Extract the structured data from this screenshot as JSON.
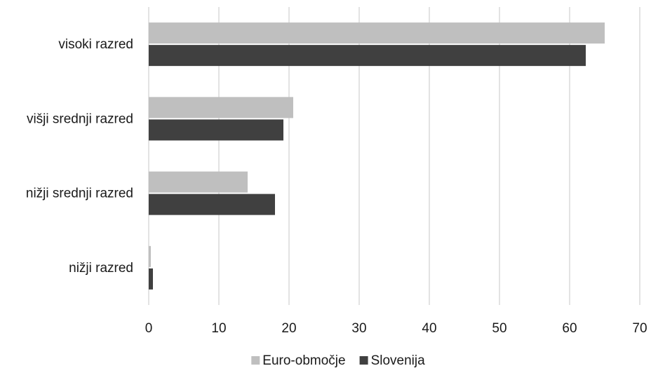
{
  "chart_data": {
    "type": "bar",
    "orientation": "horizontal",
    "categories": [
      "visoki razred",
      "višji srednji razred",
      "nižji srednji razred",
      "nižji razred"
    ],
    "series": [
      {
        "name": "Euro-območje",
        "values": [
          65.0,
          20.6,
          14.1,
          0.3
        ],
        "color": "#bfbfbf"
      },
      {
        "name": "Slovenija",
        "values": [
          62.3,
          19.2,
          18.0,
          0.6
        ],
        "color": "#404040"
      }
    ],
    "xlim": [
      0,
      70
    ],
    "xticks": [
      0,
      10,
      20,
      30,
      40,
      50,
      60,
      70
    ],
    "grid": true,
    "legend_position": "bottom-center"
  }
}
